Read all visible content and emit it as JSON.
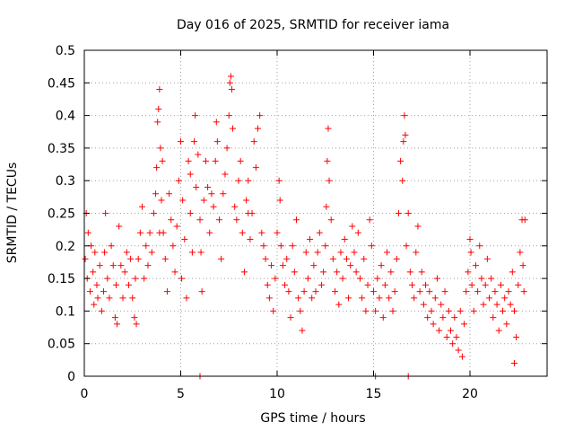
{
  "chart_data": {
    "type": "scatter",
    "title": "Day 016 of 2025, SRMTID for receiver iama",
    "xlabel": "GPS time / hours",
    "ylabel": "SRMTID / TECUs",
    "xlim": [
      0,
      24
    ],
    "ylim": [
      0,
      0.5
    ],
    "xticks": [
      0,
      5,
      10,
      15,
      20
    ],
    "yticks": [
      0,
      0.05,
      0.1,
      0.15,
      0.2,
      0.25,
      0.3,
      0.35,
      0.4,
      0.45,
      0.5
    ],
    "grid": true,
    "marker": "+",
    "color": "#ff0000",
    "series": [
      {
        "name": "SRMTID",
        "points": [
          [
            0.05,
            0.18
          ],
          [
            0.1,
            0.25
          ],
          [
            0.15,
            0.15
          ],
          [
            0.2,
            0.22
          ],
          [
            0.3,
            0.13
          ],
          [
            0.35,
            0.2
          ],
          [
            0.45,
            0.16
          ],
          [
            0.5,
            0.11
          ],
          [
            0.55,
            0.19
          ],
          [
            0.65,
            0.14
          ],
          [
            0.7,
            0.12
          ],
          [
            0.8,
            0.17
          ],
          [
            0.9,
            0.1
          ],
          [
            1.0,
            0.13
          ],
          [
            1.05,
            0.19
          ],
          [
            1.1,
            0.25
          ],
          [
            1.2,
            0.15
          ],
          [
            1.3,
            0.12
          ],
          [
            1.4,
            0.2
          ],
          [
            1.5,
            0.17
          ],
          [
            1.6,
            0.09
          ],
          [
            1.65,
            0.14
          ],
          [
            1.7,
            0.08
          ],
          [
            1.8,
            0.23
          ],
          [
            1.9,
            0.17
          ],
          [
            2.0,
            0.12
          ],
          [
            2.1,
            0.16
          ],
          [
            2.2,
            0.19
          ],
          [
            2.3,
            0.14
          ],
          [
            2.4,
            0.18
          ],
          [
            2.5,
            0.12
          ],
          [
            2.6,
            0.09
          ],
          [
            2.65,
            0.15
          ],
          [
            2.7,
            0.08
          ],
          [
            2.8,
            0.18
          ],
          [
            2.9,
            0.22
          ],
          [
            3.0,
            0.26
          ],
          [
            3.1,
            0.15
          ],
          [
            3.2,
            0.2
          ],
          [
            3.3,
            0.17
          ],
          [
            3.4,
            0.22
          ],
          [
            3.5,
            0.19
          ],
          [
            3.6,
            0.25
          ],
          [
            3.7,
            0.28
          ],
          [
            3.75,
            0.32
          ],
          [
            3.8,
            0.39
          ],
          [
            3.85,
            0.41
          ],
          [
            3.9,
            0.44
          ],
          [
            3.95,
            0.35
          ],
          [
            4.0,
            0.27
          ],
          [
            4.05,
            0.33
          ],
          [
            4.1,
            0.22
          ],
          [
            4.2,
            0.18
          ],
          [
            4.3,
            0.13
          ],
          [
            4.4,
            0.28
          ],
          [
            4.5,
            0.24
          ],
          [
            4.6,
            0.2
          ],
          [
            4.7,
            0.16
          ],
          [
            4.8,
            0.23
          ],
          [
            4.9,
            0.3
          ],
          [
            5.0,
            0.36
          ],
          [
            5.05,
            0.15
          ],
          [
            5.1,
            0.27
          ],
          [
            5.2,
            0.21
          ],
          [
            5.3,
            0.12
          ],
          [
            5.4,
            0.33
          ],
          [
            5.5,
            0.25
          ],
          [
            5.6,
            0.19
          ],
          [
            5.7,
            0.36
          ],
          [
            5.75,
            0.4
          ],
          [
            5.8,
            0.29
          ],
          [
            5.9,
            0.34
          ],
          [
            6.0,
            0.24
          ],
          [
            6.05,
            0.19
          ],
          [
            6.1,
            0.13
          ],
          [
            6.2,
            0.27
          ],
          [
            6.3,
            0.33
          ],
          [
            6.4,
            0.29
          ],
          [
            6.5,
            0.22
          ],
          [
            6.6,
            0.28
          ],
          [
            6.7,
            0.26
          ],
          [
            6.8,
            0.33
          ],
          [
            6.85,
            0.39
          ],
          [
            6.9,
            0.36
          ],
          [
            7.0,
            0.24
          ],
          [
            7.1,
            0.18
          ],
          [
            7.2,
            0.28
          ],
          [
            7.3,
            0.31
          ],
          [
            7.4,
            0.35
          ],
          [
            7.5,
            0.4
          ],
          [
            7.55,
            0.45
          ],
          [
            7.6,
            0.46
          ],
          [
            7.65,
            0.44
          ],
          [
            7.7,
            0.38
          ],
          [
            7.8,
            0.26
          ],
          [
            7.9,
            0.24
          ],
          [
            8.0,
            0.3
          ],
          [
            8.1,
            0.33
          ],
          [
            8.2,
            0.22
          ],
          [
            8.3,
            0.16
          ],
          [
            8.4,
            0.27
          ],
          [
            8.5,
            0.3
          ],
          [
            8.6,
            0.21
          ],
          [
            8.7,
            0.25
          ],
          [
            8.8,
            0.36
          ],
          [
            8.9,
            0.32
          ],
          [
            9.0,
            0.38
          ],
          [
            9.1,
            0.4
          ],
          [
            9.2,
            0.22
          ],
          [
            9.3,
            0.2
          ],
          [
            9.4,
            0.18
          ],
          [
            9.5,
            0.14
          ],
          [
            9.6,
            0.12
          ],
          [
            9.7,
            0.17
          ],
          [
            9.8,
            0.1
          ],
          [
            9.9,
            0.15
          ],
          [
            10.0,
            0.22
          ],
          [
            10.1,
            0.3
          ],
          [
            10.15,
            0.27
          ],
          [
            10.2,
            0.2
          ],
          [
            10.3,
            0.17
          ],
          [
            10.4,
            0.14
          ],
          [
            10.5,
            0.18
          ],
          [
            10.6,
            0.13
          ],
          [
            10.7,
            0.09
          ],
          [
            10.8,
            0.2
          ],
          [
            10.9,
            0.16
          ],
          [
            11.0,
            0.24
          ],
          [
            11.1,
            0.12
          ],
          [
            11.2,
            0.1
          ],
          [
            11.3,
            0.07
          ],
          [
            11.4,
            0.13
          ],
          [
            11.5,
            0.19
          ],
          [
            11.6,
            0.15
          ],
          [
            11.7,
            0.21
          ],
          [
            11.8,
            0.12
          ],
          [
            11.9,
            0.17
          ],
          [
            12.0,
            0.13
          ],
          [
            12.1,
            0.19
          ],
          [
            12.2,
            0.22
          ],
          [
            12.3,
            0.14
          ],
          [
            12.4,
            0.16
          ],
          [
            12.5,
            0.2
          ],
          [
            12.55,
            0.26
          ],
          [
            12.6,
            0.33
          ],
          [
            12.65,
            0.38
          ],
          [
            12.7,
            0.3
          ],
          [
            12.8,
            0.24
          ],
          [
            12.9,
            0.18
          ],
          [
            13.0,
            0.13
          ],
          [
            13.1,
            0.16
          ],
          [
            13.2,
            0.11
          ],
          [
            13.3,
            0.19
          ],
          [
            13.4,
            0.15
          ],
          [
            13.5,
            0.21
          ],
          [
            13.6,
            0.18
          ],
          [
            13.7,
            0.12
          ],
          [
            13.8,
            0.17
          ],
          [
            13.9,
            0.23
          ],
          [
            14.0,
            0.19
          ],
          [
            14.1,
            0.16
          ],
          [
            14.2,
            0.22
          ],
          [
            14.3,
            0.15
          ],
          [
            14.4,
            0.12
          ],
          [
            14.5,
            0.18
          ],
          [
            14.6,
            0.1
          ],
          [
            14.7,
            0.14
          ],
          [
            14.8,
            0.24
          ],
          [
            14.9,
            0.2
          ],
          [
            15.0,
            0.13
          ],
          [
            15.1,
            0.1
          ],
          [
            15.2,
            0.15
          ],
          [
            15.3,
            0.12
          ],
          [
            15.4,
            0.17
          ],
          [
            15.5,
            0.09
          ],
          [
            15.6,
            0.14
          ],
          [
            15.7,
            0.19
          ],
          [
            15.8,
            0.12
          ],
          [
            15.9,
            0.16
          ],
          [
            16.0,
            0.1
          ],
          [
            16.1,
            0.13
          ],
          [
            16.2,
            0.18
          ],
          [
            16.3,
            0.25
          ],
          [
            16.4,
            0.33
          ],
          [
            16.5,
            0.3
          ],
          [
            16.55,
            0.36
          ],
          [
            16.6,
            0.4
          ],
          [
            16.65,
            0.37
          ],
          [
            16.7,
            0.2
          ],
          [
            16.8,
            0.25
          ],
          [
            16.9,
            0.16
          ],
          [
            17.0,
            0.14
          ],
          [
            17.1,
            0.12
          ],
          [
            17.2,
            0.19
          ],
          [
            17.3,
            0.23
          ],
          [
            17.4,
            0.13
          ],
          [
            17.5,
            0.16
          ],
          [
            17.6,
            0.11
          ],
          [
            17.7,
            0.14
          ],
          [
            17.8,
            0.09
          ],
          [
            17.9,
            0.13
          ],
          [
            18.0,
            0.1
          ],
          [
            18.1,
            0.08
          ],
          [
            18.2,
            0.12
          ],
          [
            18.3,
            0.15
          ],
          [
            18.4,
            0.07
          ],
          [
            18.5,
            0.11
          ],
          [
            18.6,
            0.09
          ],
          [
            18.7,
            0.13
          ],
          [
            18.8,
            0.06
          ],
          [
            18.9,
            0.1
          ],
          [
            19.0,
            0.07
          ],
          [
            19.1,
            0.05
          ],
          [
            19.2,
            0.09
          ],
          [
            19.3,
            0.06
          ],
          [
            19.4,
            0.04
          ],
          [
            19.5,
            0.1
          ],
          [
            19.6,
            0.03
          ],
          [
            19.7,
            0.08
          ],
          [
            19.8,
            0.13
          ],
          [
            19.9,
            0.16
          ],
          [
            20.0,
            0.21
          ],
          [
            20.05,
            0.19
          ],
          [
            20.1,
            0.14
          ],
          [
            20.2,
            0.1
          ],
          [
            20.3,
            0.17
          ],
          [
            20.4,
            0.13
          ],
          [
            20.5,
            0.2
          ],
          [
            20.6,
            0.15
          ],
          [
            20.7,
            0.11
          ],
          [
            20.8,
            0.14
          ],
          [
            20.9,
            0.18
          ],
          [
            21.0,
            0.12
          ],
          [
            21.1,
            0.15
          ],
          [
            21.2,
            0.09
          ],
          [
            21.3,
            0.13
          ],
          [
            21.4,
            0.11
          ],
          [
            21.5,
            0.07
          ],
          [
            21.6,
            0.14
          ],
          [
            21.7,
            0.1
          ],
          [
            21.8,
            0.12
          ],
          [
            21.9,
            0.08
          ],
          [
            22.0,
            0.13
          ],
          [
            22.1,
            0.11
          ],
          [
            22.2,
            0.16
          ],
          [
            22.3,
            0.1
          ],
          [
            22.4,
            0.06
          ],
          [
            22.5,
            0.14
          ],
          [
            22.6,
            0.19
          ],
          [
            22.7,
            0.24
          ],
          [
            22.75,
            0.17
          ],
          [
            22.8,
            0.13
          ],
          [
            22.85,
            0.24
          ],
          [
            22.3,
            0.02
          ],
          [
            6.0,
            0.0
          ],
          [
            15.1,
            0.0
          ],
          [
            16.8,
            0.0
          ],
          [
            3.9,
            0.22
          ],
          [
            5.5,
            0.31
          ],
          [
            8.5,
            0.25
          ]
        ]
      }
    ]
  }
}
